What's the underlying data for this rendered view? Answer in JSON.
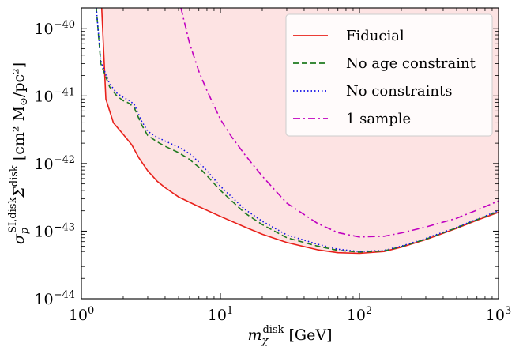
{
  "chart_data": {
    "type": "line",
    "xscale": "log",
    "yscale": "log",
    "xlim": [
      1,
      1000
    ],
    "ylim": [
      1e-44,
      2e-40
    ],
    "x_ticks": [
      {
        "value": 1,
        "base": "10",
        "exp": "0"
      },
      {
        "value": 10,
        "base": "10",
        "exp": "1"
      },
      {
        "value": 100,
        "base": "10",
        "exp": "2"
      },
      {
        "value": 1000,
        "base": "10",
        "exp": "3"
      }
    ],
    "y_ticks": [
      {
        "value": 1e-44,
        "base": "10",
        "exp": "−44"
      },
      {
        "value": 1e-43,
        "base": "10",
        "exp": "−43"
      },
      {
        "value": 1e-42,
        "base": "10",
        "exp": "−42"
      },
      {
        "value": 1e-41,
        "base": "10",
        "exp": "−41"
      },
      {
        "value": 1e-40,
        "base": "10",
        "exp": "−40"
      }
    ],
    "xlabel": {
      "main": "m",
      "sub": "χ",
      "sup": "disk",
      "unit": " [GeV]"
    },
    "ylabel": {
      "main": "σ",
      "sub": "p",
      "sup": "SI,disk",
      "main2": "Σ",
      "sup2": "disk",
      "unit": " [cm² M",
      "unit_sub": "⊙",
      "unit_end": "/pc²]"
    },
    "grid": false,
    "legend_position": "top-right",
    "excluded_region": {
      "color": "#fde3e3",
      "bound_series": "Fiducial"
    },
    "series": [
      {
        "name": "Fiducial",
        "color": "#e8201a",
        "dash": "solid",
        "x": [
          1.4,
          1.5,
          1.7,
          2.0,
          2.3,
          2.6,
          3.0,
          3.5,
          4.0,
          5.0,
          7.0,
          10,
          15,
          20,
          30,
          50,
          70,
          100,
          150,
          200,
          300,
          500,
          700,
          1000
        ],
        "y": [
          2e-40,
          9e-42,
          4e-42,
          2.7e-42,
          1.9e-42,
          1.2e-42,
          7.8e-43,
          5.5e-43,
          4.4e-43,
          3.2e-43,
          2.3e-43,
          1.65e-43,
          1.15e-43,
          9e-44,
          6.8e-44,
          5.3e-44,
          4.8e-44,
          4.7e-44,
          5e-44,
          5.8e-44,
          7.5e-44,
          1.1e-43,
          1.45e-43,
          1.9e-43
        ]
      },
      {
        "name": "No age constraint",
        "color": "#1f7a1f",
        "dash": "dashed",
        "x": [
          1.28,
          1.38,
          1.5,
          1.6,
          1.8,
          2.0,
          2.2,
          2.4,
          2.7,
          3.0,
          3.5,
          4.0,
          5.0,
          6.0,
          7.0,
          8.0,
          10,
          15,
          20,
          30,
          50,
          70,
          100,
          150,
          200,
          300,
          500,
          700,
          1000
        ],
        "y": [
          2e-40,
          3e-41,
          1.9e-41,
          1.35e-41,
          1e-41,
          8.5e-42,
          7.8e-42,
          6.7e-42,
          3.8e-42,
          2.6e-42,
          2.1e-42,
          1.8e-42,
          1.45e-42,
          1.15e-42,
          8.8e-43,
          6.6e-43,
          4e-43,
          1.85e-43,
          1.25e-43,
          8e-44,
          6e-44,
          5.2e-44,
          4.9e-44,
          5.1e-44,
          5.9e-44,
          7.6e-44,
          1.12e-43,
          1.48e-43,
          1.95e-43
        ]
      },
      {
        "name": "No constraints",
        "color": "#1010e8",
        "dash": "dotted",
        "x": [
          1.28,
          1.38,
          1.5,
          1.6,
          1.8,
          2.0,
          2.2,
          2.4,
          2.7,
          3.0,
          3.5,
          4.0,
          5.0,
          6.0,
          7.0,
          8.0,
          10,
          15,
          20,
          30,
          50,
          70,
          100,
          150,
          200,
          300,
          500,
          700,
          1000
        ],
        "y": [
          2e-40,
          3.3e-41,
          2.05e-41,
          1.5e-41,
          1.1e-41,
          9.5e-42,
          8.6e-42,
          7.5e-42,
          4.3e-42,
          3e-42,
          2.45e-42,
          2.15e-42,
          1.75e-42,
          1.4e-42,
          1.05e-42,
          7.8e-43,
          4.6e-43,
          2.1e-43,
          1.4e-43,
          8.8e-44,
          6.4e-44,
          5.4e-44,
          5e-44,
          5.2e-44,
          6e-44,
          7.8e-44,
          1.14e-43,
          1.5e-43,
          2e-43
        ]
      },
      {
        "name": "1 sample",
        "color": "#c000c0",
        "dash": "dashdot",
        "x": [
          5.2,
          6,
          7,
          8,
          10,
          12,
          15,
          20,
          30,
          50,
          70,
          100,
          150,
          200,
          300,
          500,
          700,
          1000
        ],
        "y": [
          2e-40,
          6e-41,
          2.3e-41,
          1.2e-41,
          4.5e-42,
          2.5e-42,
          1.35e-42,
          6.5e-43,
          2.6e-43,
          1.3e-43,
          9.5e-44,
          8.2e-44,
          8.4e-44,
          9.4e-44,
          1.15e-43,
          1.55e-43,
          2.05e-43,
          2.8e-43
        ]
      }
    ]
  }
}
